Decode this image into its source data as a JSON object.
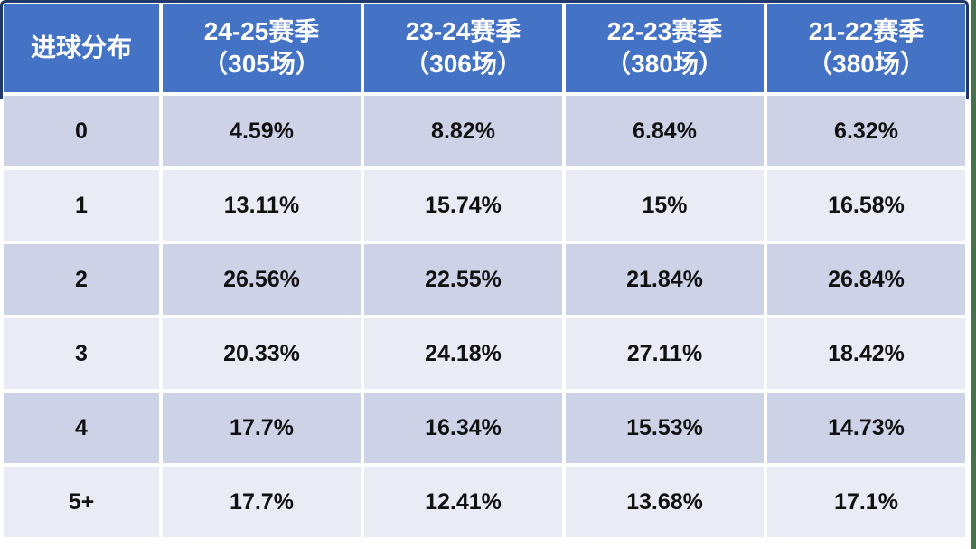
{
  "table": {
    "title": "进球分布",
    "header": {
      "label_column": "进球分布",
      "columns": [
        {
          "season": "24-25赛季",
          "matches": "（305场）"
        },
        {
          "season": "23-24赛季",
          "matches": "（306场）"
        },
        {
          "season": "22-23赛季",
          "matches": "（380场）"
        },
        {
          "season": "21-22赛季",
          "matches": "（380场）"
        }
      ]
    },
    "rows": [
      {
        "label": "0",
        "values": [
          "4.59%",
          "8.82%",
          "6.84%",
          "6.32%"
        ]
      },
      {
        "label": "1",
        "values": [
          "13.11%",
          "15.74%",
          "15%",
          "16.58%"
        ]
      },
      {
        "label": "2",
        "values": [
          "26.56%",
          "22.55%",
          "21.84%",
          "26.84%"
        ]
      },
      {
        "label": "3",
        "values": [
          "20.33%",
          "24.18%",
          "27.11%",
          "18.42%"
        ]
      },
      {
        "label": "4",
        "values": [
          "17.7%",
          "16.34%",
          "15.53%",
          "14.73%"
        ]
      },
      {
        "label": "5+",
        "values": [
          "17.7%",
          "12.41%",
          "13.68%",
          "17.1%"
        ]
      }
    ]
  },
  "chart_data": {
    "type": "table",
    "title": "进球分布",
    "categories": [
      "0",
      "1",
      "2",
      "3",
      "4",
      "5+"
    ],
    "series": [
      {
        "name": "24-25赛季（305场）",
        "values": [
          4.59,
          13.11,
          26.56,
          20.33,
          17.7,
          17.7
        ]
      },
      {
        "name": "23-24赛季（306场）",
        "values": [
          8.82,
          15.74,
          22.55,
          24.18,
          16.34,
          12.41
        ]
      },
      {
        "name": "22-23赛季（380场）",
        "values": [
          6.84,
          15,
          21.84,
          27.11,
          15.53,
          13.68
        ]
      },
      {
        "name": "21-22赛季（380场）",
        "values": [
          6.32,
          16.58,
          26.84,
          18.42,
          14.73,
          17.1
        ]
      }
    ],
    "unit": "%"
  },
  "colors": {
    "header_bg": "#4472C4",
    "header_text": "#FFFFFF",
    "header_border": "#20386B",
    "row_dark": "#CDD2E7",
    "row_light": "#E9EBF5",
    "body_text": "#111111",
    "page_bg": "#FFFFFF",
    "right_strip": "#47724C"
  }
}
